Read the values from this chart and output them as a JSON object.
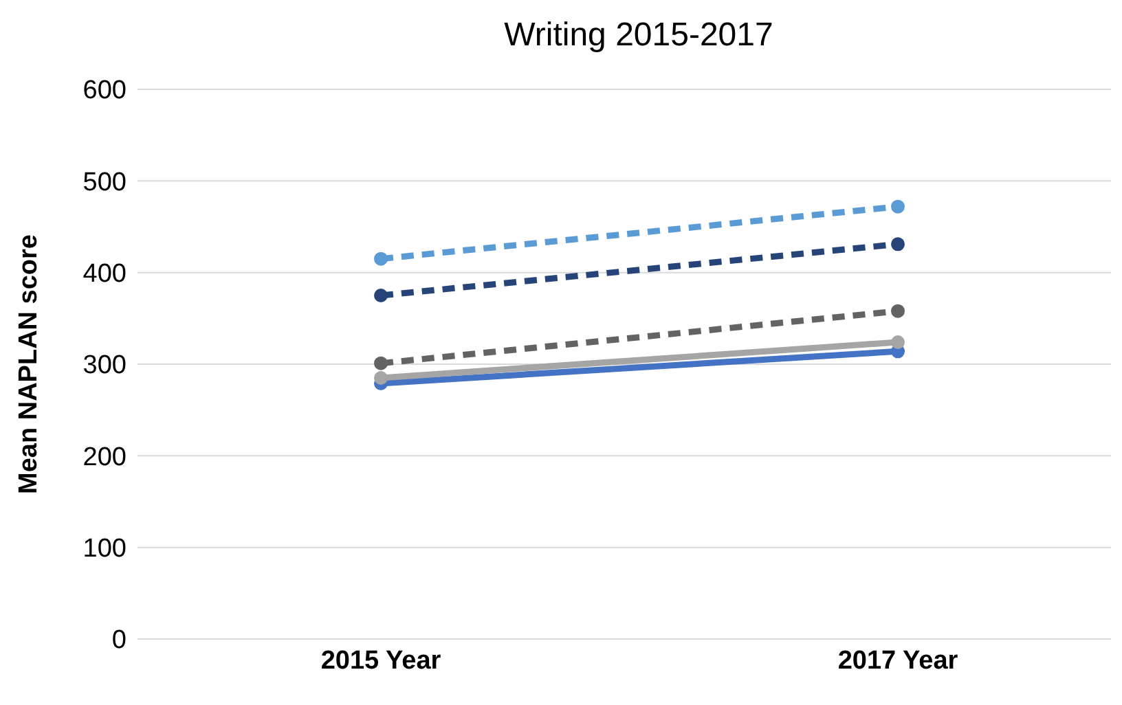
{
  "chart_data": {
    "type": "line",
    "title": "Writing 2015-2017",
    "ylabel": "Mean NAPLAN score",
    "categories": [
      "2015 Year",
      "2017 Year"
    ],
    "series": [
      {
        "color": "#5b9bd5",
        "values": [
          415,
          472
        ],
        "line_style": "dashed"
      },
      {
        "color": "#264478",
        "values": [
          375,
          431
        ],
        "line_style": "dashed"
      },
      {
        "color": "#636363",
        "values": [
          301,
          358
        ],
        "line_style": "dashed"
      },
      {
        "color": "#a5a5a5",
        "values": [
          285,
          324
        ],
        "line_style": "solid"
      },
      {
        "color": "#4472c4",
        "values": [
          279,
          314
        ],
        "line_style": "solid"
      }
    ],
    "ylim": [
      0,
      600
    ],
    "yticks": [
      0,
      100,
      200,
      300,
      400,
      500,
      600
    ],
    "grid": "y",
    "marker": "circle"
  }
}
